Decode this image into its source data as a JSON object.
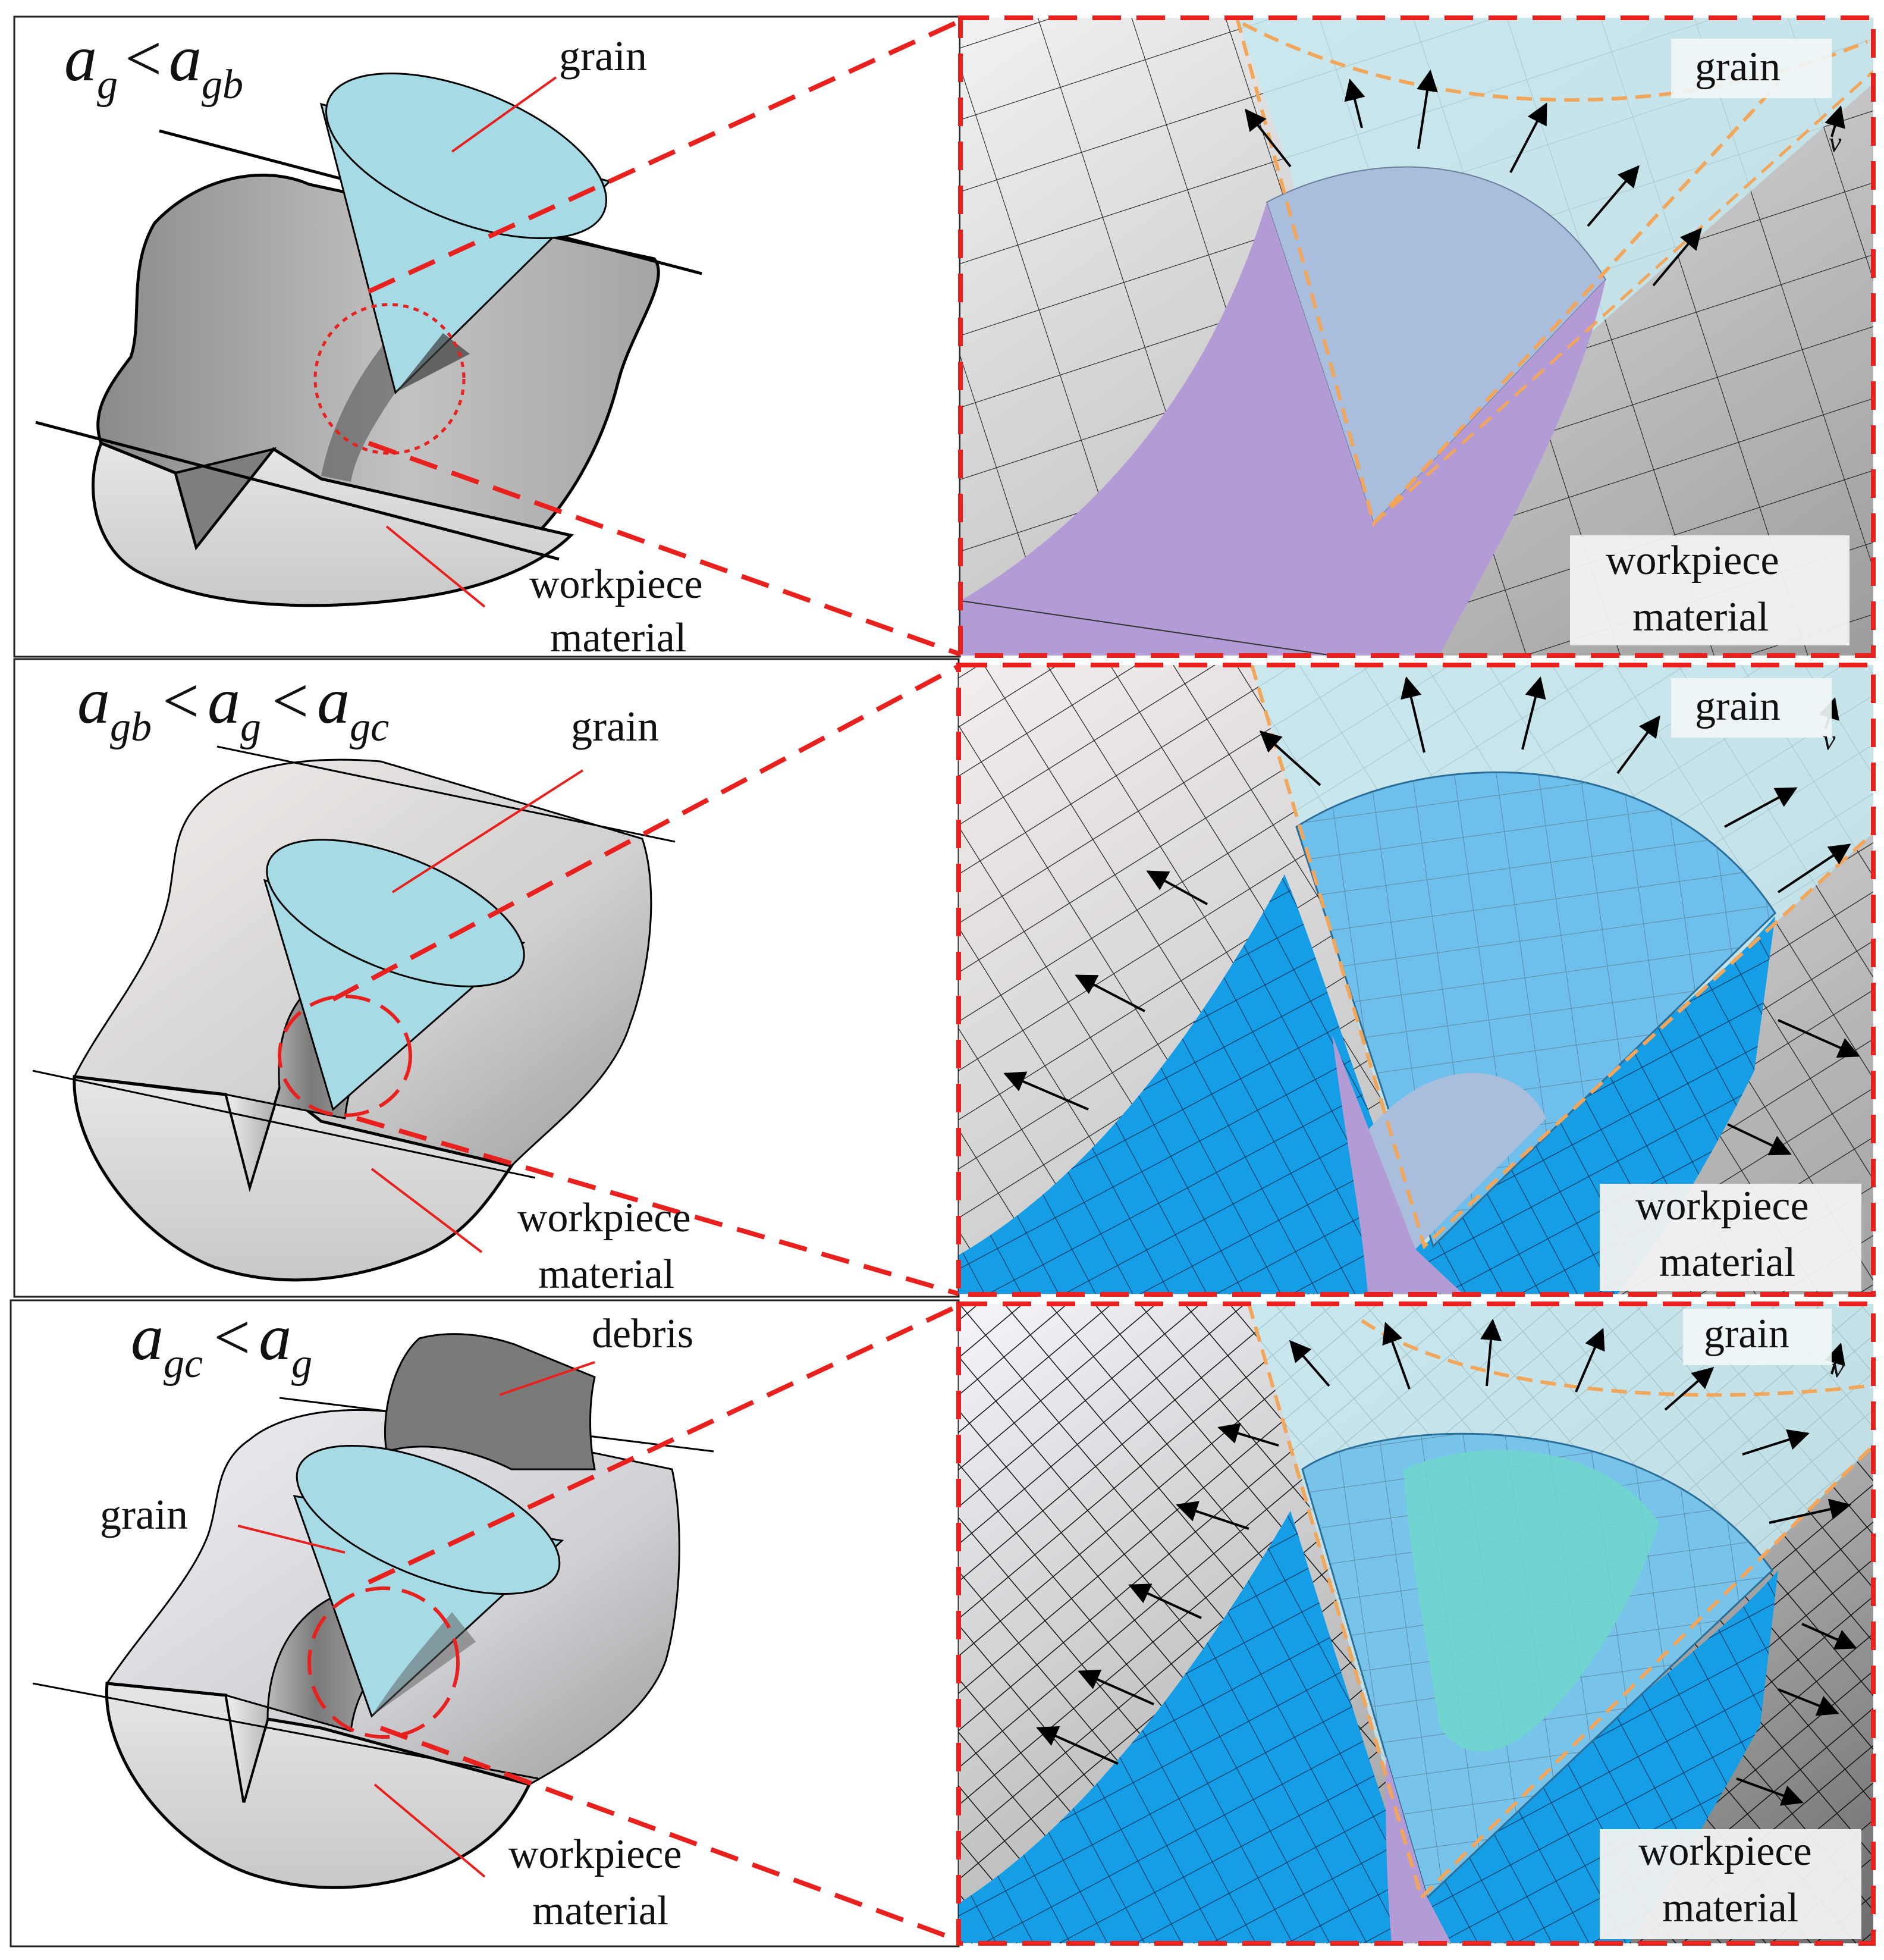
{
  "colors": {
    "red": "#e8201e",
    "grain": "#a6dbe6",
    "grain_dark": "#8fcbd8",
    "purple": "#b397d6",
    "blue": "#159ee6",
    "orange": "#f2a65a",
    "ice": "#c4e8ee"
  },
  "panels": [
    {
      "condition": {
        "a": "a",
        "s1": "g",
        "op1": "<",
        "b": "a",
        "s2": "gb"
      },
      "labels": {
        "grain": "grain",
        "workpiece1": "workpiece",
        "workpiece2": "material"
      },
      "zoom": {
        "grain": "grain",
        "velocity": "v",
        "workpiece1": "workpiece",
        "workpiece2": "material"
      }
    },
    {
      "condition": {
        "a": "a",
        "s1": "gb",
        "op1": "<",
        "b": "a",
        "s2": "g",
        "op2": "<",
        "c": "a",
        "s3": "gc"
      },
      "labels": {
        "grain": "grain",
        "workpiece1": "workpiece",
        "workpiece2": "material"
      },
      "zoom": {
        "grain": "grain",
        "velocity": "v",
        "workpiece1": "workpiece",
        "workpiece2": "material"
      }
    },
    {
      "condition": {
        "a": "a",
        "s1": "gc",
        "op1": "<",
        "b": "a",
        "s2": "g"
      },
      "labels": {
        "debris": "debris",
        "grain": "grain",
        "workpiece1": "workpiece",
        "workpiece2": "material"
      },
      "zoom": {
        "grain": "grain",
        "velocity": "v",
        "workpiece1": "workpiece",
        "workpiece2": "material"
      }
    }
  ]
}
